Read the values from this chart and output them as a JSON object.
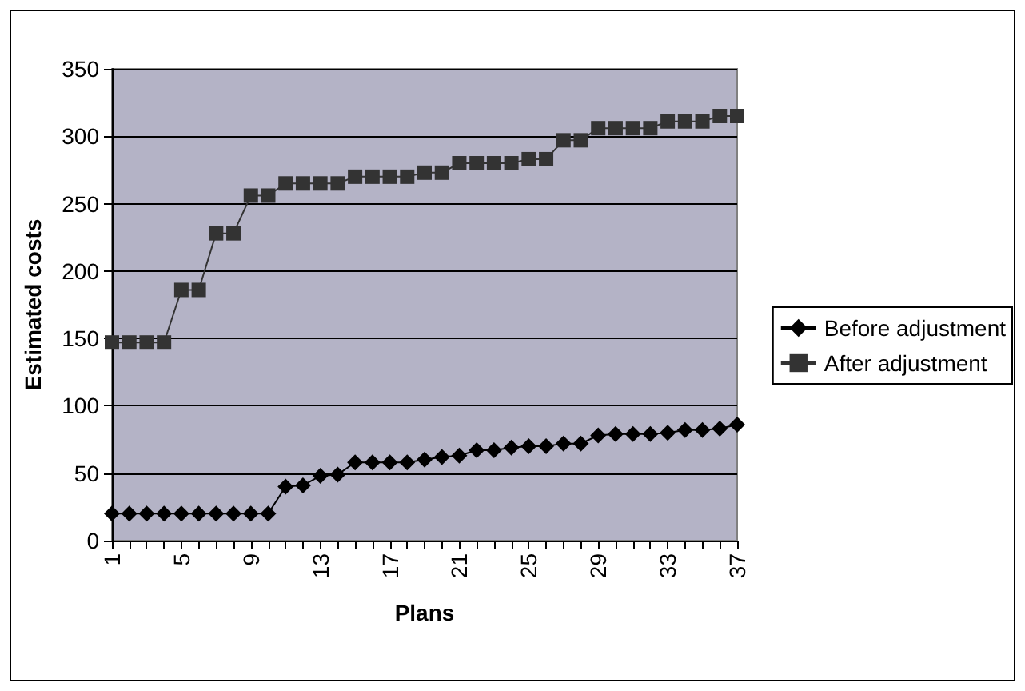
{
  "chart_data": {
    "type": "line",
    "xlabel": "Plans",
    "ylabel": "Estimated costs",
    "categories": [
      "1",
      null,
      null,
      null,
      "5",
      null,
      null,
      null,
      "9",
      null,
      null,
      null,
      "13",
      null,
      null,
      null,
      "17",
      null,
      null,
      null,
      "21",
      null,
      null,
      null,
      "25",
      null,
      null,
      null,
      "29",
      null,
      null,
      null,
      "33",
      null,
      null,
      null,
      "37"
    ],
    "series": [
      {
        "name": "Before adjustment",
        "color": "#000000",
        "marker": "diamond",
        "values": [
          20,
          20,
          20,
          20,
          20,
          20,
          20,
          20,
          20,
          20,
          40,
          41,
          48,
          49,
          58,
          58,
          58,
          58,
          60,
          62,
          63,
          67,
          67,
          69,
          70,
          70,
          72,
          72,
          78,
          79,
          79,
          79,
          80,
          82,
          82,
          83,
          86
        ]
      },
      {
        "name": "After adjustment",
        "color": "#333333",
        "marker": "square",
        "values": [
          147,
          147,
          147,
          147,
          186,
          186,
          228,
          228,
          256,
          256,
          265,
          265,
          265,
          265,
          270,
          270,
          270,
          270,
          273,
          273,
          280,
          280,
          280,
          280,
          283,
          283,
          297,
          297,
          306,
          306,
          306,
          306,
          311,
          311,
          311,
          315,
          315
        ]
      }
    ],
    "ylim": [
      0,
      350
    ],
    "yticks": [
      0,
      50,
      100,
      150,
      200,
      250,
      300,
      350
    ],
    "grid": "y",
    "legend": "right",
    "line_style": "solid"
  }
}
